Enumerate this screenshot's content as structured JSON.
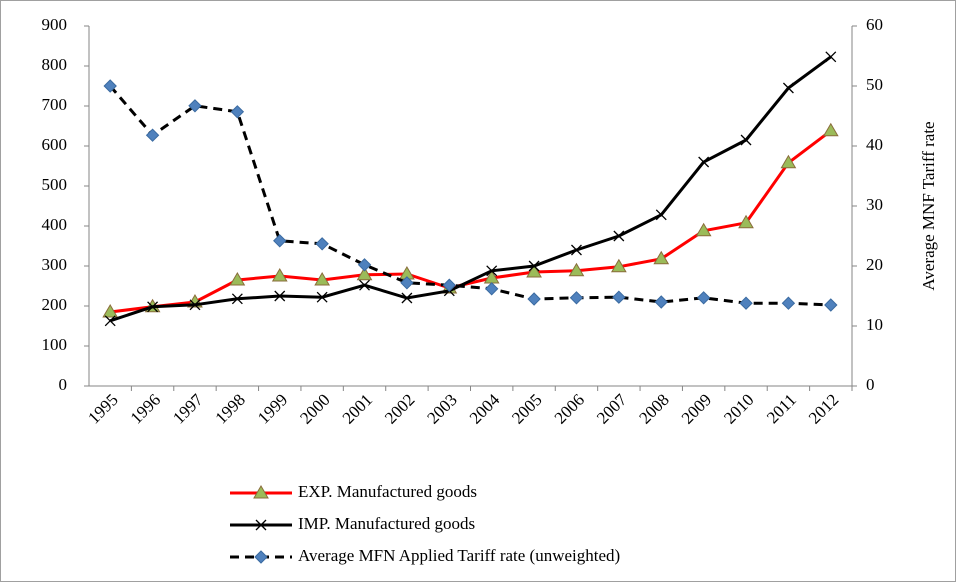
{
  "chart_data": {
    "type": "line",
    "y2_label": "Average MNF Tariff rate",
    "categories": [
      "1995",
      "1996",
      "1997",
      "1998",
      "1999",
      "2000",
      "2001",
      "2002",
      "2003",
      "2004",
      "2005",
      "2006",
      "2007",
      "2008",
      "2009",
      "2010",
      "2011",
      "2012"
    ],
    "ylim": [
      0,
      900
    ],
    "yticks": [
      0,
      100,
      200,
      300,
      400,
      500,
      600,
      700,
      800,
      900
    ],
    "y2lim": [
      0,
      60
    ],
    "y2ticks": [
      0,
      10,
      20,
      30,
      40,
      50,
      60
    ],
    "series": [
      {
        "name": "EXP. Manufactured goods",
        "color": "#ff0000",
        "marker": "triangle",
        "marker_color": "#9bbb59",
        "line_style": "solid",
        "values": [
          185,
          198,
          210,
          265,
          275,
          265,
          278,
          280,
          245,
          270,
          285,
          288,
          298,
          318,
          388,
          408,
          558,
          638
        ]
      },
      {
        "name": "IMP. Manufactured goods",
        "color": "#000000",
        "marker": "x",
        "marker_color": "#000000",
        "line_style": "solid",
        "values": [
          163,
          198,
          203,
          218,
          225,
          222,
          252,
          220,
          238,
          288,
          300,
          340,
          375,
          428,
          560,
          615,
          745,
          823
        ]
      },
      {
        "name": "Average MFN Applied Tariff rate (unweighted)",
        "color": "#000000",
        "marker": "diamond",
        "marker_color": "#4f81bd",
        "line_style": "dashed",
        "axis": "y2",
        "values": [
          50,
          41.8,
          46.7,
          45.7,
          24.2,
          23.7,
          20.2,
          17.2,
          16.8,
          16.2,
          14.5,
          14.7,
          14.8,
          14,
          14.7,
          13.8,
          13.8,
          13.5
        ]
      }
    ]
  }
}
